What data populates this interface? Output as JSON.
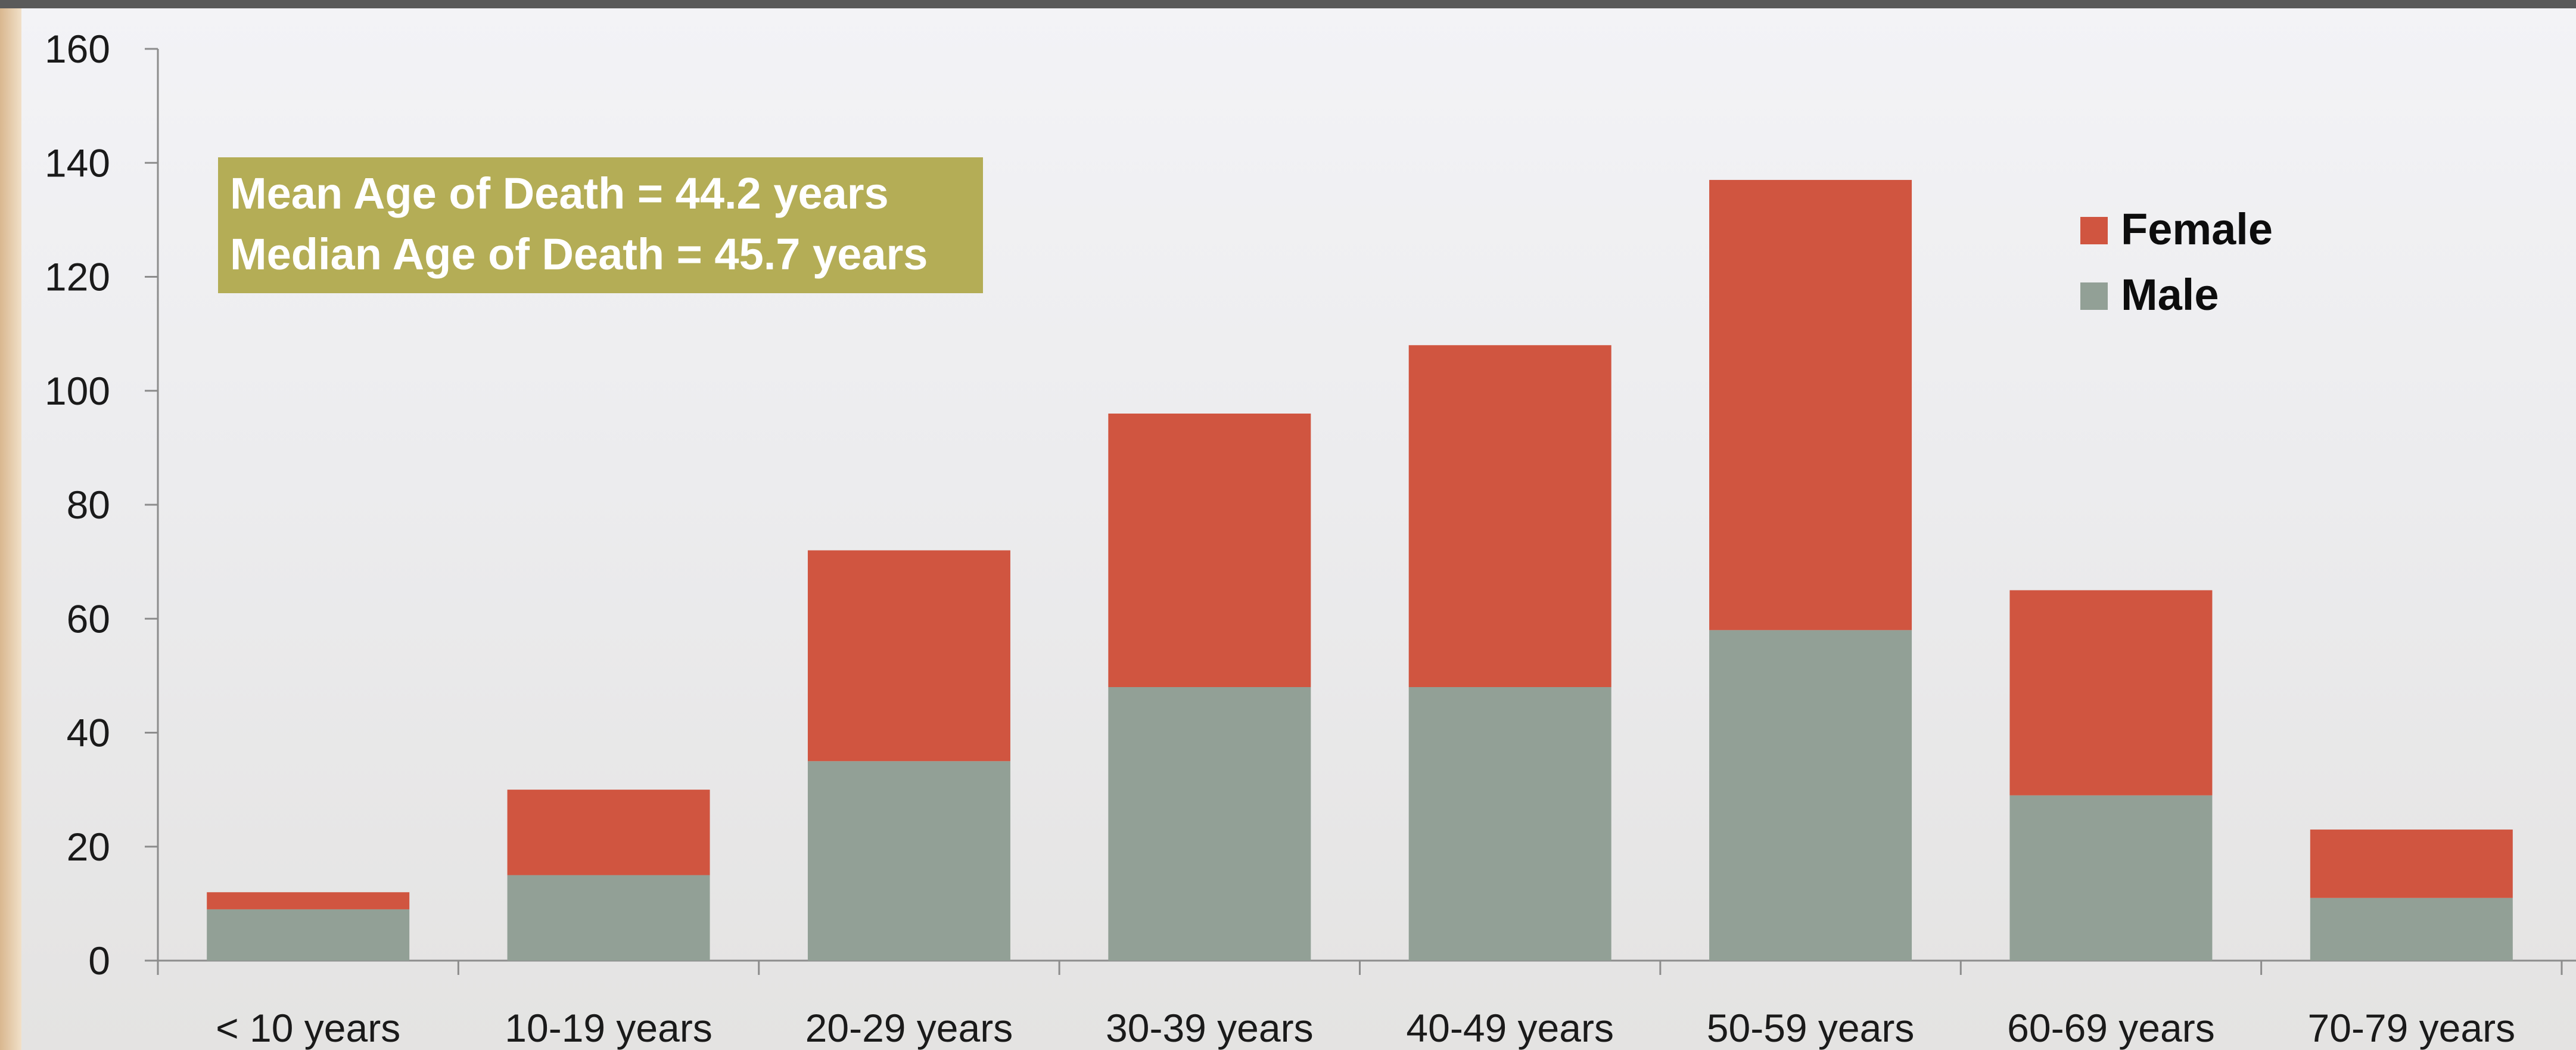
{
  "chart_data": {
    "type": "bar",
    "stacked": true,
    "categories": [
      "< 10 years",
      "10-19 years",
      "20-29 years",
      "30-39 years",
      "40-49 years",
      "50-59 years",
      "60-69 years",
      "70-79 years"
    ],
    "series": [
      {
        "name": "Male",
        "values": [
          9,
          15,
          35,
          48,
          48,
          58,
          29,
          11
        ],
        "color": "#92a096"
      },
      {
        "name": "Female",
        "values": [
          3,
          15,
          37,
          48,
          60,
          79,
          36,
          12
        ],
        "color": "#d05540"
      }
    ],
    "ylim": [
      0,
      160
    ],
    "yticks": [
      0,
      20,
      40,
      60,
      80,
      100,
      120,
      140,
      160
    ],
    "legend": {
      "position": "top-right",
      "entries": [
        "Female",
        "Male"
      ]
    },
    "annotation": {
      "lines": [
        "Mean Age of Death = 44.2 years",
        "Median Age of Death = 45.7 years"
      ],
      "background": "#b4ad56"
    },
    "grid": false
  }
}
